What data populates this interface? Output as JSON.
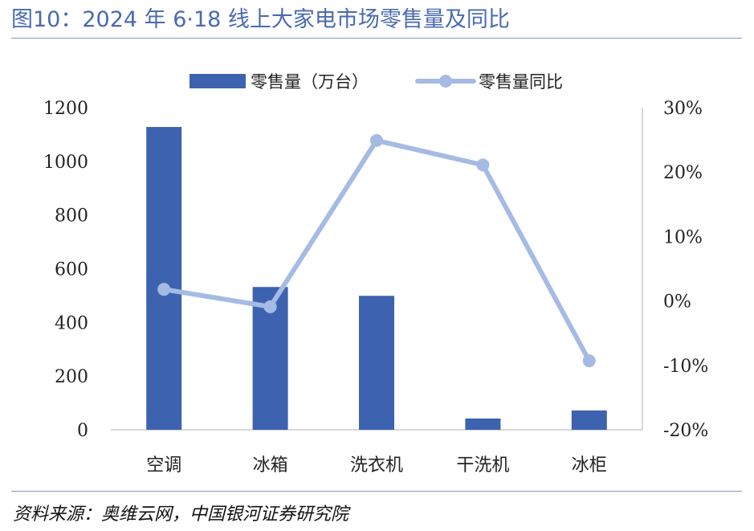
{
  "title": "图10：2024 年 6·18 线上大家电市场零售量及同比",
  "source": "资料来源：奥维云网，中国银河证券研究院",
  "colors": {
    "bar": "#3d63b0",
    "line": "#a6bbe3",
    "axis": "#d9d9d9",
    "title": "#4a6ab0"
  },
  "chart_data": {
    "type": "bar",
    "categories": [
      "空调",
      "冰箱",
      "洗衣机",
      "干洗机",
      "冰柜"
    ],
    "series": [
      {
        "name": "零售量（万台）",
        "type": "bar",
        "axis": "left",
        "values": [
          1128,
          532,
          499,
          42,
          72
        ]
      },
      {
        "name": "零售量同比",
        "type": "line",
        "axis": "right",
        "values": [
          0.018,
          -0.009,
          0.249,
          0.211,
          -0.093
        ]
      }
    ],
    "y_left": {
      "min": 0,
      "max": 1200,
      "ticks": [
        "0",
        "200",
        "400",
        "600",
        "800",
        "1000",
        "1200"
      ]
    },
    "y_right": {
      "min": -0.2,
      "max": 0.3,
      "ticks": [
        "-20%",
        "-10%",
        "0%",
        "10%",
        "20%",
        "30%"
      ]
    },
    "legend_position": "top"
  }
}
